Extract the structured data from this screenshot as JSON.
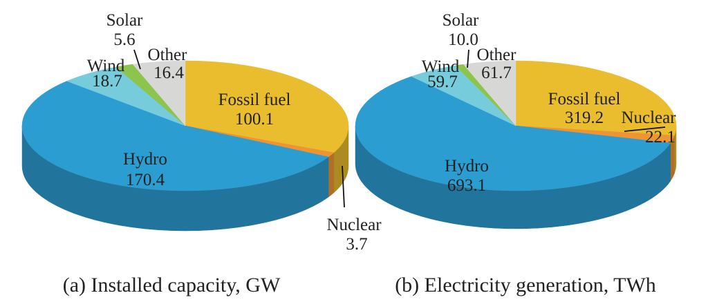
{
  "chart_data": [
    {
      "type": "pie",
      "caption": "(a) Installed capacity, GW",
      "slices": [
        {
          "label": "Fossil fuel",
          "value": 100.1,
          "color": "#E9BD2E"
        },
        {
          "label": "Nuclear",
          "value": 3.7,
          "color": "#EF9433"
        },
        {
          "label": "Hydro",
          "value": 170.4,
          "color": "#2C9DD1"
        },
        {
          "label": "Wind",
          "value": 18.7,
          "color": "#76CCDB"
        },
        {
          "label": "Solar",
          "value": 5.6,
          "color": "#8DC44E"
        },
        {
          "label": "Other",
          "value": 16.4,
          "color": "#D7D8D6"
        }
      ]
    },
    {
      "type": "pie",
      "caption": "(b) Electricity generation, TWh",
      "slices": [
        {
          "label": "Fossil fuel",
          "value": 319.2,
          "color": "#E9BD2E"
        },
        {
          "label": "Nuclear",
          "value": 22.1,
          "color": "#EF9433"
        },
        {
          "label": "Hydro",
          "value": 693.1,
          "color": "#2C9DD1"
        },
        {
          "label": "Wind",
          "value": 59.7,
          "color": "#76CCDB"
        },
        {
          "label": "Solar",
          "value": 10.0,
          "color": "#8DC44E"
        },
        {
          "label": "Other",
          "value": 61.7,
          "color": "#D7D8D6"
        }
      ]
    }
  ]
}
